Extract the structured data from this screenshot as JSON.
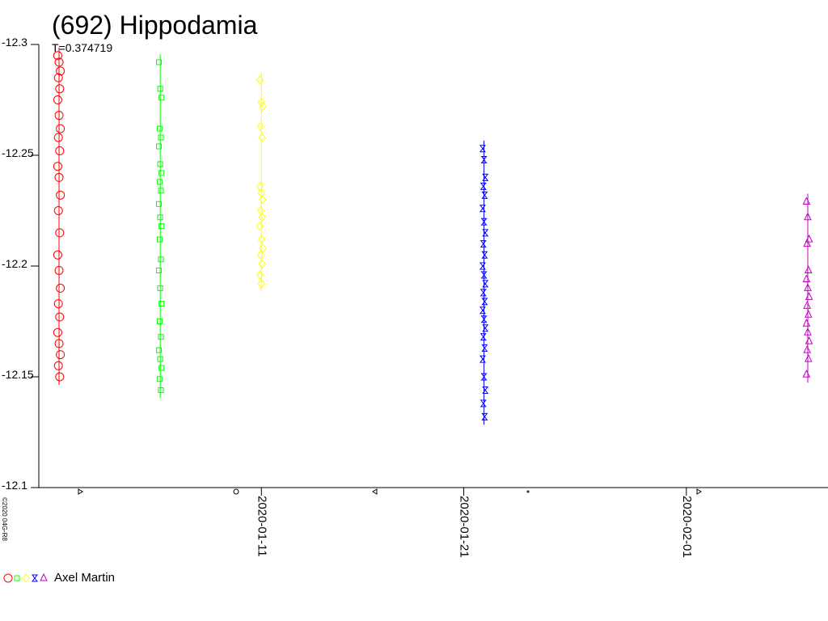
{
  "chart_data": {
    "type": "scatter",
    "title": "(692) Hippodamia",
    "subtitle": "T=0.374719",
    "legend": "Axel Martin",
    "copyright": "©2020 04G-R8",
    "xlim": [
      "2019-12-31",
      "2020-02-08"
    ],
    "xticks": [
      "2020-01-11",
      "2020-01-21",
      "2020-02-01"
    ],
    "ylim": [
      -12.3,
      -12.1
    ],
    "yticks": [
      -12.3,
      -12.25,
      -12.2,
      -12.15,
      -12.1
    ],
    "series": [
      {
        "color": "#ff0000",
        "marker": "circle",
        "x": "2020-01-01",
        "values": [
          -12.295,
          -12.292,
          -12.288,
          -12.285,
          -12.28,
          -12.275,
          -12.268,
          -12.262,
          -12.258,
          -12.252,
          -12.245,
          -12.24,
          -12.232,
          -12.225,
          -12.215,
          -12.205,
          -12.198,
          -12.19,
          -12.183,
          -12.177,
          -12.17,
          -12.165,
          -12.16,
          -12.155,
          -12.15
        ]
      },
      {
        "color": "#00ff00",
        "marker": "square",
        "x": "2020-01-06",
        "values": [
          -12.292,
          -12.28,
          -12.276,
          -12.262,
          -12.258,
          -12.254,
          -12.246,
          -12.242,
          -12.238,
          -12.234,
          -12.228,
          -12.222,
          -12.218,
          -12.212,
          -12.203,
          -12.198,
          -12.19,
          -12.183,
          -12.175,
          -12.168,
          -12.162,
          -12.158,
          -12.154,
          -12.149,
          -12.144
        ]
      },
      {
        "color": "#ffff00",
        "marker": "diamond",
        "x": "2020-01-11",
        "values": [
          -12.284,
          -12.274,
          -12.272,
          -12.263,
          -12.258,
          -12.236,
          -12.233,
          -12.23,
          -12.225,
          -12.222,
          -12.218,
          -12.212,
          -12.208,
          -12.205,
          -12.201,
          -12.196,
          -12.192
        ]
      },
      {
        "color": "#0000ff",
        "marker": "hourglass",
        "x": "2020-01-22",
        "values": [
          -12.253,
          -12.248,
          -12.24,
          -12.236,
          -12.232,
          -12.226,
          -12.22,
          -12.215,
          -12.21,
          -12.205,
          -12.2,
          -12.196,
          -12.192,
          -12.188,
          -12.184,
          -12.18,
          -12.176,
          -12.172,
          -12.168,
          -12.163,
          -12.158,
          -12.15,
          -12.144,
          -12.138,
          -12.132
        ]
      },
      {
        "color": "#c000c0",
        "marker": "triangle",
        "x": "2020-02-07",
        "values": [
          -12.229,
          -12.222,
          -12.212,
          -12.21,
          -12.198,
          -12.194,
          -12.19,
          -12.186,
          -12.182,
          -12.178,
          -12.174,
          -12.17,
          -12.166,
          -12.162,
          -12.158,
          -12.151
        ]
      }
    ]
  }
}
